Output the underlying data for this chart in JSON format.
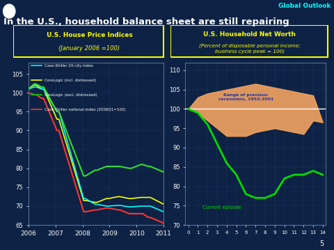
{
  "title": "In the U.S., household balance sheet are still repairing",
  "global_outlook_label": "Global Outlook",
  "background_color": "#0d2244",
  "title_color": "#ffffff",
  "left_chart_title": "U.S. House Price Indices",
  "left_chart_subtitle": "(January 2006 =100)",
  "right_chart_title": "U.S. Household Net Worth",
  "right_chart_subtitle": "(Percent of disposable personal income;\nbusiness cycle peak = 100)",
  "left_ylim": [
    65,
    108
  ],
  "left_yticks": [
    65,
    70,
    75,
    80,
    85,
    90,
    95,
    100,
    105
  ],
  "left_xticks_labels": [
    "2006",
    "2007",
    "2008",
    "2009",
    "2010",
    "2011"
  ],
  "right_ylim": [
    70,
    112
  ],
  "right_yticks": [
    70,
    75,
    80,
    85,
    90,
    95,
    100,
    105,
    110
  ],
  "right_xticks_labels": [
    "0",
    "1",
    "2",
    "3",
    "4",
    "5",
    "6",
    "7",
    "8",
    "9",
    "10",
    "11",
    "12",
    "13",
    "14"
  ],
  "legend_entries": [
    {
      "label": "Case-Shiller 20-city index",
      "color": "#00ffff"
    },
    {
      "label": "CoreLogic (incl. distressed)",
      "color": "#ffff00"
    },
    {
      "label": "CoreLogic (excl. distressed)",
      "color": "#00cc00"
    },
    {
      "label": "Case-Shiller national index (2006Q1=100)",
      "color": "#ff3333"
    }
  ],
  "range_fill_upper": [
    100,
    103,
    104,
    104.5,
    105.0,
    105.5,
    106.0,
    106.5,
    106.0,
    105.5,
    105.0,
    104.5,
    104.0,
    103.5,
    96.5
  ],
  "range_fill_lower": [
    100,
    99,
    97,
    95.0,
    93.0,
    93.0,
    93.0,
    94.0,
    94.5,
    95.0,
    94.5,
    94.0,
    93.5,
    97.0,
    96.5
  ],
  "range_fill_color": "#f4a460",
  "current_episode": [
    100,
    99,
    96,
    91,
    86,
    83,
    78,
    77,
    77,
    78,
    82,
    83,
    83,
    84,
    83
  ],
  "current_episode_color": "#00dd00",
  "page_number": "5"
}
